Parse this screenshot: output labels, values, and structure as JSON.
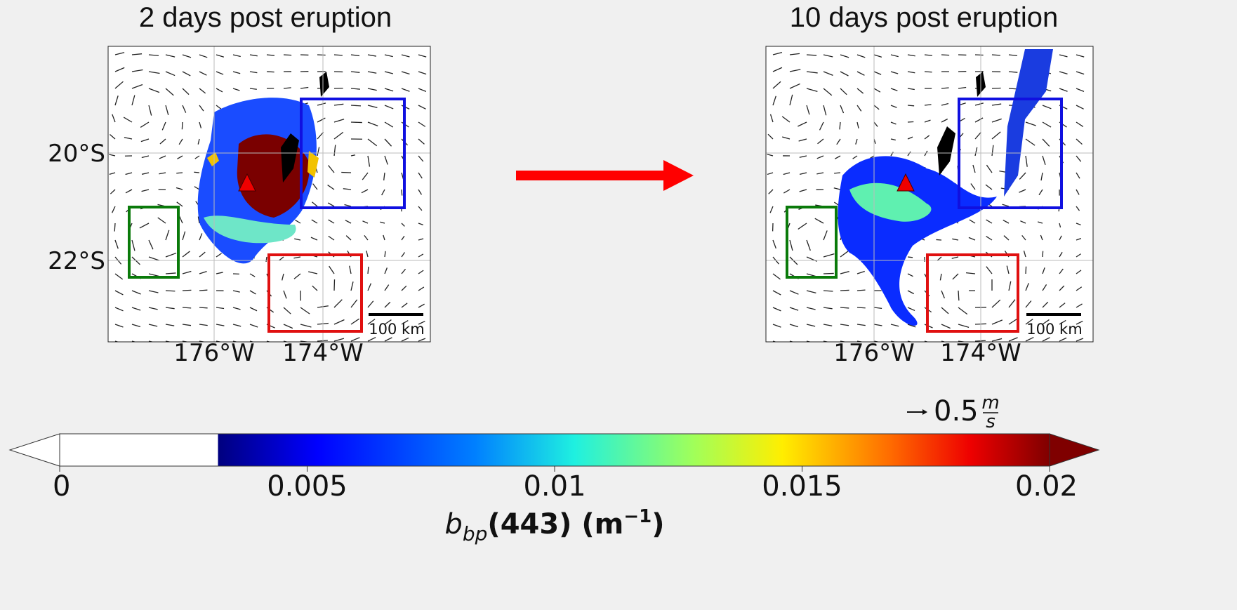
{
  "panels": [
    {
      "title": "2 days post eruption",
      "lat_labels": [
        "20°S",
        "22°S"
      ],
      "lon_labels": [
        "176°W",
        "174°W"
      ],
      "scale_label": "100 km"
    },
    {
      "title": "10 days post eruption",
      "lon_labels": [
        "176°W",
        "174°W"
      ],
      "scale_label": "100 km"
    }
  ],
  "vector_key": {
    "value": "0.5",
    "unit_top": "m",
    "unit_bottom": "s"
  },
  "colorbar": {
    "lim": [
      0,
      0.02
    ],
    "ticks": [
      0,
      0.005,
      0.01,
      0.015,
      0.02
    ],
    "label": {
      "symbol": "b",
      "subscript": "bp",
      "text": "(443) (m",
      "superscript": "−1",
      "close": ")"
    }
  }
}
